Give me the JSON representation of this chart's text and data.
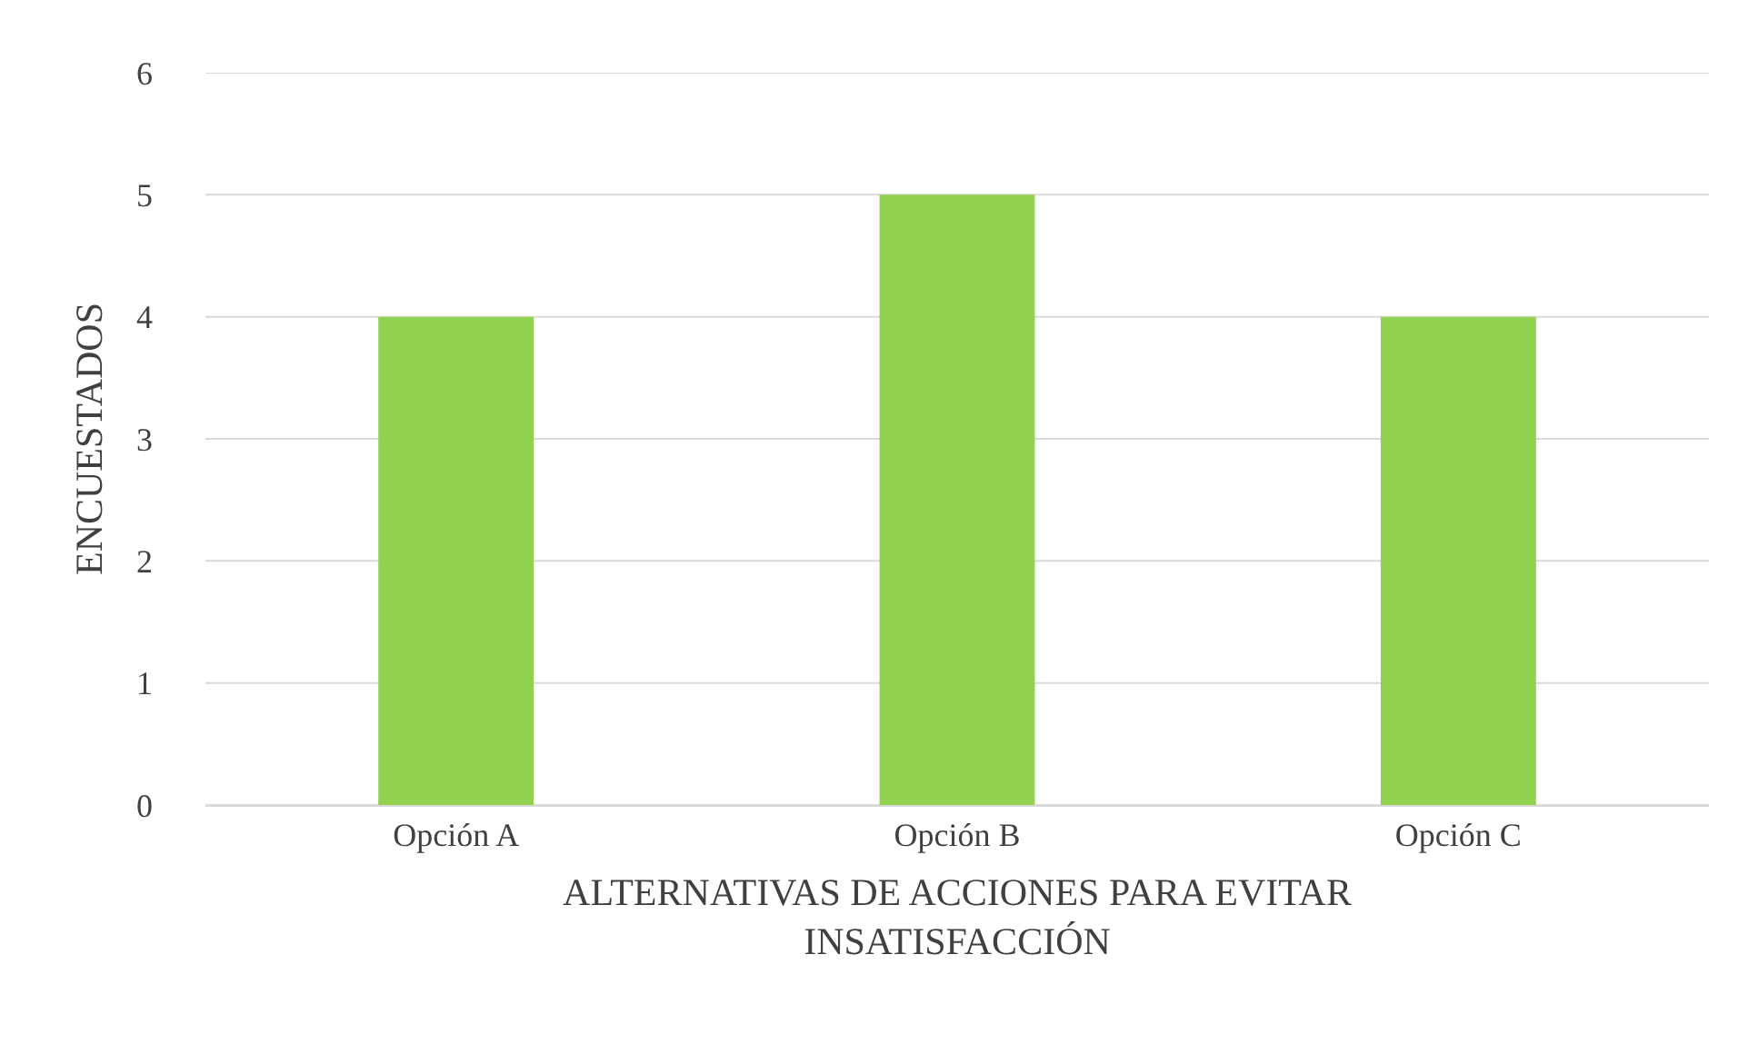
{
  "chart_data": {
    "type": "bar",
    "xlabel": "ALTERNATIVAS DE ACCIONES PARA EVITAR INSATISFACCIÓN",
    "ylabel": "ENCUESTADOS",
    "categories": [
      "Opción A",
      "Opción B",
      "Opción C"
    ],
    "values": [
      4,
      5,
      4
    ],
    "color": "#92d050",
    "ylim": [
      0,
      6
    ],
    "yticks": [
      0,
      1,
      2,
      3,
      4,
      5,
      6
    ],
    "grid": "y"
  }
}
